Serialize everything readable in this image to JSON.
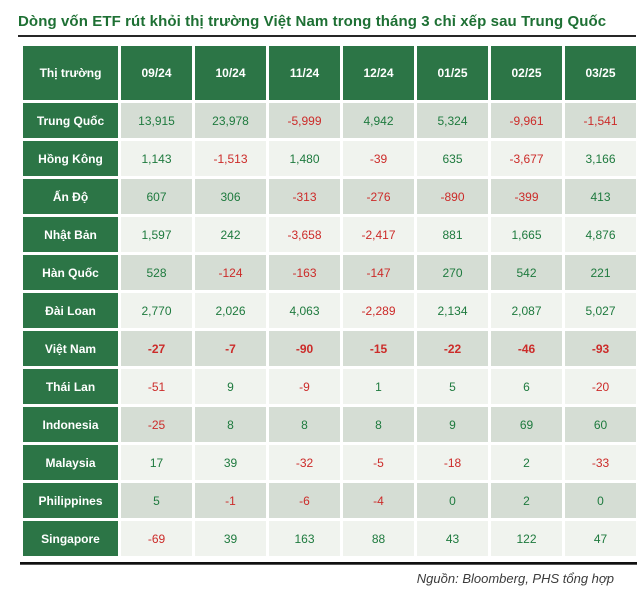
{
  "title": "Dòng vốn ETF rút khỏi thị trường Việt Nam trong tháng 3 chỉ xếp sau Trung Quốc",
  "source": "Nguồn: Bloomberg, PHS tổng hợp",
  "colors": {
    "header_green": "#2c7546",
    "row_shaded": "#d5ddd4",
    "row_light": "#f0f3ee",
    "positive_text": "#1e7a3e",
    "negative_text": "#cc2b29",
    "title_green": "#1e7034"
  },
  "chart_data": {
    "type": "table",
    "title": "Dòng vốn ETF rút khỏi thị trường Việt Nam trong tháng 3 chỉ xếp sau Trung Quốc",
    "columns": [
      "Thị trường",
      "09/24",
      "10/24",
      "11/24",
      "12/24",
      "01/25",
      "02/25",
      "03/25"
    ],
    "rows": [
      {
        "market": "Trung Quốc",
        "values": [
          "13,915",
          "23,978",
          "-5,999",
          "4,942",
          "5,324",
          "-9,961",
          "-1,541"
        ],
        "emphasis": false
      },
      {
        "market": "Hồng Kông",
        "values": [
          "1,143",
          "-1,513",
          "1,480",
          "-39",
          "635",
          "-3,677",
          "3,166"
        ],
        "emphasis": false
      },
      {
        "market": "Ấn Độ",
        "values": [
          "607",
          "306",
          "-313",
          "-276",
          "-890",
          "-399",
          "413"
        ],
        "emphasis": false
      },
      {
        "market": "Nhật Bản",
        "values": [
          "1,597",
          "242",
          "-3,658",
          "-2,417",
          "881",
          "1,665",
          "4,876"
        ],
        "emphasis": false
      },
      {
        "market": "Hàn Quốc",
        "values": [
          "528",
          "-124",
          "-163",
          "-147",
          "270",
          "542",
          "221"
        ],
        "emphasis": false
      },
      {
        "market": "Đài Loan",
        "values": [
          "2,770",
          "2,026",
          "4,063",
          "-2,289",
          "2,134",
          "2,087",
          "5,027"
        ],
        "emphasis": false
      },
      {
        "market": "Việt Nam",
        "values": [
          "-27",
          "-7",
          "-90",
          "-15",
          "-22",
          "-46",
          "-93"
        ],
        "emphasis": true
      },
      {
        "market": "Thái Lan",
        "values": [
          "-51",
          "9",
          "-9",
          "1",
          "5",
          "6",
          "-20"
        ],
        "emphasis": false
      },
      {
        "market": "Indonesia",
        "values": [
          "-25",
          "8",
          "8",
          "8",
          "9",
          "69",
          "60"
        ],
        "emphasis": false
      },
      {
        "market": "Malaysia",
        "values": [
          "17",
          "39",
          "-32",
          "-5",
          "-18",
          "2",
          "-33"
        ],
        "emphasis": false
      },
      {
        "market": "Philippines",
        "values": [
          "5",
          "-1",
          "-6",
          "-4",
          "0",
          "2",
          "0"
        ],
        "emphasis": false
      },
      {
        "market": "Singapore",
        "values": [
          "-69",
          "39",
          "163",
          "88",
          "43",
          "122",
          "47"
        ],
        "emphasis": false
      }
    ],
    "source": "Nguồn: Bloomberg, PHS tổng hợp",
    "layout": {
      "negative_color_rule": "values starting with - are red, others green",
      "shading": "alternating rows, first data row shaded"
    }
  }
}
